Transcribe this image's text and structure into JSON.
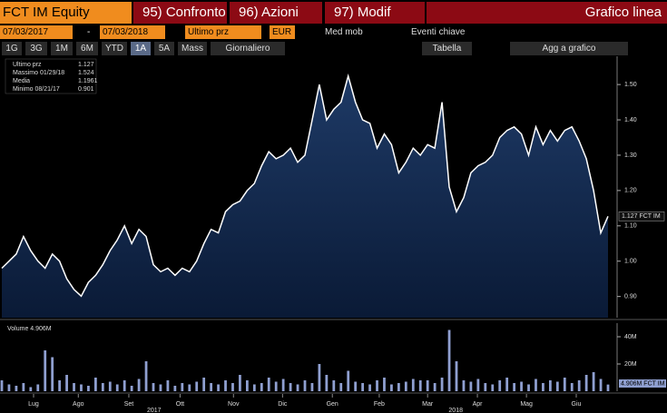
{
  "toolbar": {
    "security": "FCT IM Equity",
    "menu": [
      "95) Confronto",
      "96) Azioni",
      "97) Modif"
    ],
    "chart_type": "Grafico linea",
    "start_date": "07/03/2017",
    "date_sep": "-",
    "end_date": "07/03/2018",
    "field": "Ultimo prz",
    "currency": "EUR",
    "moving_avg": "Med mob",
    "events": "Eventi chiave",
    "periods": [
      "1G",
      "3G",
      "1M",
      "6M",
      "YTD",
      "1A",
      "5A",
      "Mass"
    ],
    "frequency": "Giornaliero",
    "table": "Tabella",
    "add": "Agg a grafico"
  },
  "chart_data": [
    {
      "type": "line",
      "series": [
        {
          "name": "Ultimo prz",
          "color": "#ffffff",
          "values": [
            0.98,
            1.0,
            1.02,
            1.07,
            1.03,
            1.0,
            0.98,
            1.02,
            1.0,
            0.95,
            0.92,
            0.901,
            0.94,
            0.96,
            0.99,
            1.03,
            1.06,
            1.1,
            1.05,
            1.09,
            1.07,
            0.99,
            0.97,
            0.98,
            0.96,
            0.98,
            0.97,
            1.0,
            1.05,
            1.09,
            1.08,
            1.14,
            1.16,
            1.17,
            1.2,
            1.22,
            1.27,
            1.31,
            1.29,
            1.3,
            1.32,
            1.28,
            1.3,
            1.4,
            1.5,
            1.4,
            1.43,
            1.45,
            1.524,
            1.45,
            1.4,
            1.39,
            1.32,
            1.36,
            1.33,
            1.25,
            1.28,
            1.32,
            1.3,
            1.33,
            1.32,
            1.45,
            1.21,
            1.14,
            1.18,
            1.25,
            1.27,
            1.28,
            1.3,
            1.35,
            1.37,
            1.38,
            1.36,
            1.3,
            1.38,
            1.33,
            1.37,
            1.34,
            1.37,
            1.38,
            1.34,
            1.29,
            1.2,
            1.08,
            1.127
          ]
        }
      ],
      "ylim": [
        0.84,
        1.58
      ],
      "yticks": [
        {
          "value": 0.9,
          "label": "0.90"
        },
        {
          "value": 1.0,
          "label": "1.00"
        },
        {
          "value": 1.1,
          "label": "1.10"
        },
        {
          "value": 1.2,
          "label": "1.20"
        },
        {
          "value": 1.3,
          "label": "1.30"
        },
        {
          "value": 1.4,
          "label": "1.40"
        },
        {
          "value": 1.5,
          "label": "1.50"
        }
      ],
      "xlim": [
        0,
        84
      ],
      "xticks": [
        {
          "value": 4.4,
          "label": "Lug"
        },
        {
          "value": 10.6,
          "label": "Ago"
        },
        {
          "value": 17.6,
          "label": "Set"
        },
        {
          "value": 24.7,
          "label": "Ott"
        },
        {
          "value": 32.1,
          "label": "Nov"
        },
        {
          "value": 38.9,
          "label": "Dic"
        },
        {
          "value": 45.8,
          "label": "Gen"
        },
        {
          "value": 52.3,
          "label": "Feb"
        },
        {
          "value": 59,
          "label": "Mar"
        },
        {
          "value": 65.9,
          "label": "Apr"
        },
        {
          "value": 72.7,
          "label": "Mag"
        },
        {
          "value": 79.6,
          "label": "Giu"
        }
      ],
      "year_ticks": [
        {
          "value": 21.1,
          "label": "2017"
        },
        {
          "value": 62.9,
          "label": "2018"
        }
      ],
      "legend": [
        {
          "label": "Ultimo prz",
          "value": "1.127"
        },
        {
          "label": "Massimo 01/29/18",
          "value": "1.524"
        },
        {
          "label": "Media",
          "value": "1.1961"
        },
        {
          "label": "Minimo 08/21/17",
          "value": "0.901"
        }
      ],
      "last_label": "1.127 FCT IM"
    },
    {
      "type": "bar",
      "title": "Volume 4.906M",
      "color": "#8f9fd0",
      "values": [
        8,
        5,
        4,
        6,
        3,
        5,
        30,
        25,
        8,
        12,
        6,
        5,
        4,
        10,
        6,
        7,
        5,
        8,
        4,
        9,
        22,
        6,
        5,
        8,
        4,
        6,
        5,
        7,
        10,
        6,
        5,
        8,
        6,
        12,
        8,
        5,
        6,
        10,
        7,
        9,
        6,
        5,
        8,
        6,
        20,
        12,
        8,
        6,
        15,
        7,
        6,
        5,
        8,
        10,
        5,
        6,
        7,
        9,
        8,
        8,
        6,
        10,
        45,
        22,
        8,
        7,
        9,
        6,
        5,
        8,
        10,
        6,
        7,
        5,
        9,
        6,
        8,
        7,
        10,
        6,
        8,
        12,
        14,
        9,
        4.906
      ],
      "ylim": [
        0,
        50
      ],
      "yticks": [
        {
          "value": 20,
          "label": "20M"
        },
        {
          "value": 40,
          "label": "40M"
        }
      ],
      "xlim": [
        0,
        84
      ],
      "last_label": "4.906M FCT IM"
    }
  ]
}
